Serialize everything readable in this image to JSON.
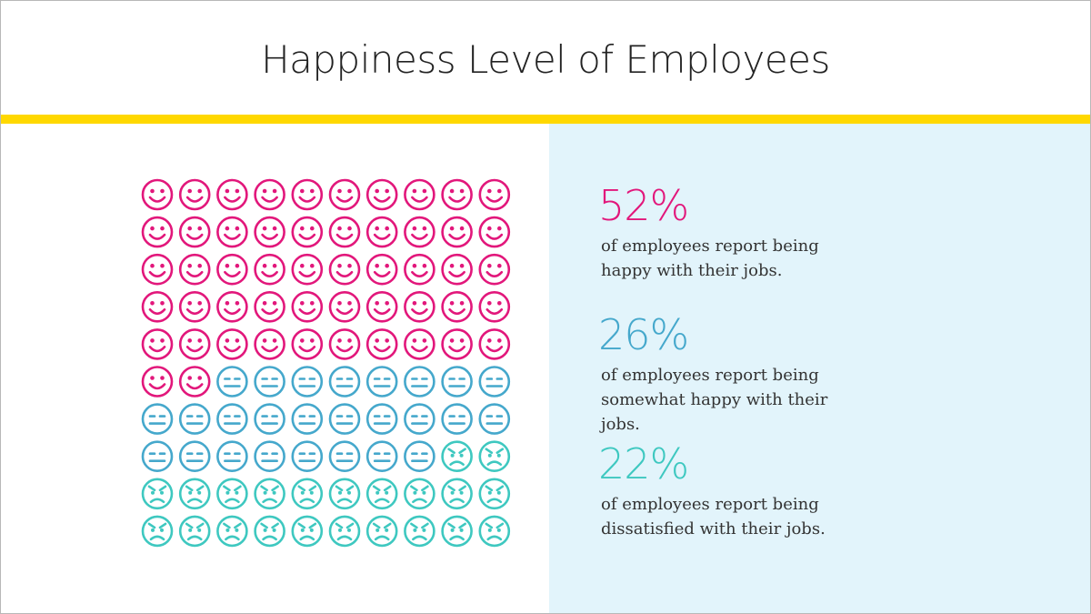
{
  "chart_data": {
    "type": "waffle",
    "title": "Happiness Level of Employees",
    "values": [
      52,
      26,
      22
    ],
    "value_labels": [
      "52%",
      "26%",
      "22%"
    ],
    "categories": [
      "of employees report being happy with their jobs.",
      "of employees report being somewhat happy with their jobs.",
      "of employees report being dissatisfied with their jobs."
    ],
    "colors": [
      "#e2177b",
      "#45a8cc",
      "#3ec8c0"
    ],
    "icons": [
      "happy",
      "neutral",
      "sad"
    ],
    "columns": 10
  }
}
